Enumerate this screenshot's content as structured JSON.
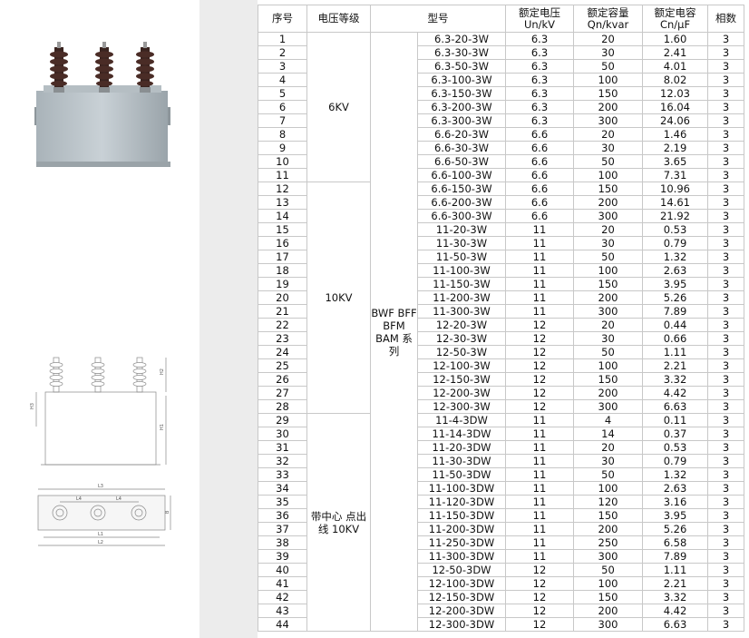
{
  "table": {
    "headers": [
      [
        "序号"
      ],
      [
        "电压等级"
      ],
      [
        "型号"
      ],
      [
        "额定电压",
        "Un/kV"
      ],
      [
        "额定容量",
        "Qn/kvar"
      ],
      [
        "额定电容",
        "Cn/μF"
      ],
      [
        "相数"
      ]
    ],
    "series": "BWF BFF BFM BAM 系列",
    "groups": [
      {
        "label": "6KV",
        "rows": [
          [
            "1",
            "6.3-20-3W",
            "6.3",
            "20",
            "1.60",
            "3"
          ],
          [
            "2",
            "6.3-30-3W",
            "6.3",
            "30",
            "2.41",
            "3"
          ],
          [
            "3",
            "6.3-50-3W",
            "6.3",
            "50",
            "4.01",
            "3"
          ],
          [
            "4",
            "6.3-100-3W",
            "6.3",
            "100",
            "8.02",
            "3"
          ],
          [
            "5",
            "6.3-150-3W",
            "6.3",
            "150",
            "12.03",
            "3"
          ],
          [
            "6",
            "6.3-200-3W",
            "6.3",
            "200",
            "16.04",
            "3"
          ],
          [
            "7",
            "6.3-300-3W",
            "6.3",
            "300",
            "24.06",
            "3"
          ],
          [
            "8",
            "6.6-20-3W",
            "6.6",
            "20",
            "1.46",
            "3"
          ],
          [
            "9",
            "6.6-30-3W",
            "6.6",
            "30",
            "2.19",
            "3"
          ],
          [
            "10",
            "6.6-50-3W",
            "6.6",
            "50",
            "3.65",
            "3"
          ],
          [
            "11",
            "6.6-100-3W",
            "6.6",
            "100",
            "7.31",
            "3"
          ]
        ]
      },
      {
        "label": "10KV",
        "rows": [
          [
            "12",
            "6.6-150-3W",
            "6.6",
            "150",
            "10.96",
            "3"
          ],
          [
            "13",
            "6.6-200-3W",
            "6.6",
            "200",
            "14.61",
            "3"
          ],
          [
            "14",
            "6.6-300-3W",
            "6.6",
            "300",
            "21.92",
            "3"
          ],
          [
            "15",
            "11-20-3W",
            "11",
            "20",
            "0.53",
            "3"
          ],
          [
            "16",
            "11-30-3W",
            "11",
            "30",
            "0.79",
            "3"
          ],
          [
            "17",
            "11-50-3W",
            "11",
            "50",
            "1.32",
            "3"
          ],
          [
            "18",
            "11-100-3W",
            "11",
            "100",
            "2.63",
            "3"
          ],
          [
            "19",
            "11-150-3W",
            "11",
            "150",
            "3.95",
            "3"
          ],
          [
            "20",
            "11-200-3W",
            "11",
            "200",
            "5.26",
            "3"
          ],
          [
            "21",
            "11-300-3W",
            "11",
            "300",
            "7.89",
            "3"
          ],
          [
            "22",
            "12-20-3W",
            "12",
            "20",
            "0.44",
            "3"
          ],
          [
            "23",
            "12-30-3W",
            "12",
            "30",
            "0.66",
            "3"
          ],
          [
            "24",
            "12-50-3W",
            "12",
            "50",
            "1.11",
            "3"
          ],
          [
            "25",
            "12-100-3W",
            "12",
            "100",
            "2.21",
            "3"
          ],
          [
            "26",
            "12-150-3W",
            "12",
            "150",
            "3.32",
            "3"
          ],
          [
            "27",
            "12-200-3W",
            "12",
            "200",
            "4.42",
            "3"
          ],
          [
            "28",
            "12-300-3W",
            "12",
            "300",
            "6.63",
            "3"
          ]
        ]
      },
      {
        "label": "带中心 点出线 10KV",
        "rows": [
          [
            "29",
            "11-4-3DW",
            "11",
            "4",
            "0.11",
            "3"
          ],
          [
            "30",
            "11-14-3DW",
            "11",
            "14",
            "0.37",
            "3"
          ],
          [
            "31",
            "11-20-3DW",
            "11",
            "20",
            "0.53",
            "3"
          ],
          [
            "32",
            "11-30-3DW",
            "11",
            "30",
            "0.79",
            "3"
          ],
          [
            "33",
            "11-50-3DW",
            "11",
            "50",
            "1.32",
            "3"
          ],
          [
            "34",
            "11-100-3DW",
            "11",
            "100",
            "2.63",
            "3"
          ],
          [
            "35",
            "11-120-3DW",
            "11",
            "120",
            "3.16",
            "3"
          ],
          [
            "36",
            "11-150-3DW",
            "11",
            "150",
            "3.95",
            "3"
          ],
          [
            "37",
            "11-200-3DW",
            "11",
            "200",
            "5.26",
            "3"
          ],
          [
            "38",
            "11-250-3DW",
            "11",
            "250",
            "6.58",
            "3"
          ],
          [
            "39",
            "11-300-3DW",
            "11",
            "300",
            "7.89",
            "3"
          ],
          [
            "40",
            "12-50-3DW",
            "12",
            "50",
            "1.11",
            "3"
          ],
          [
            "41",
            "12-100-3DW",
            "12",
            "100",
            "2.21",
            "3"
          ],
          [
            "42",
            "12-150-3DW",
            "12",
            "150",
            "3.32",
            "3"
          ],
          [
            "43",
            "12-200-3DW",
            "12",
            "200",
            "4.42",
            "3"
          ],
          [
            "44",
            "12-300-3DW",
            "12",
            "300",
            "6.63",
            "3"
          ]
        ]
      }
    ]
  },
  "figure_labels": [
    "H2",
    "H3",
    "H1",
    "L3",
    "L4",
    "L4",
    "B",
    "L1",
    "L2"
  ]
}
